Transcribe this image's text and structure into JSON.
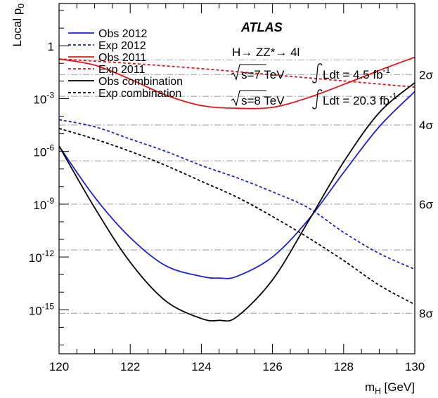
{
  "chart_data": {
    "type": "line",
    "xlabel": "m",
    "xlabel_sub": "H",
    "xlabel_unit": "[GeV]",
    "ylabel": "Local p",
    "ylabel_sub": "0",
    "xlim": [
      120,
      130
    ],
    "ylim_log10": [
      -17.5,
      2.4
    ],
    "y_scale": "log",
    "x_ticks": [
      "120",
      "122",
      "124",
      "126",
      "128",
      "130"
    ],
    "y_ticks": [
      {
        "log10": 0,
        "base": "1",
        "exp": ""
      },
      {
        "log10": -3,
        "base": "10",
        "exp": "-3"
      },
      {
        "log10": -6,
        "base": "10",
        "exp": "-6"
      },
      {
        "log10": -9,
        "base": "10",
        "exp": "-9"
      },
      {
        "log10": -12,
        "base": "10",
        "exp": "-12"
      },
      {
        "log10": -15,
        "base": "10",
        "exp": "-15"
      }
    ],
    "sigma_lines": [
      {
        "label": "2σ",
        "log10": -1.64,
        "labeled": true
      },
      {
        "label": "",
        "log10": -0.8,
        "labeled": false
      },
      {
        "label": "4σ",
        "log10": -4.5,
        "labeled": true
      },
      {
        "label": "",
        "log10": -2.87,
        "labeled": false
      },
      {
        "label": "6σ",
        "log10": -9.0,
        "labeled": true
      },
      {
        "label": "",
        "log10": -6.54,
        "labeled": false
      },
      {
        "label": "8σ",
        "log10": -15.2,
        "labeled": true
      },
      {
        "label": "",
        "log10": -11.6,
        "labeled": false
      },
      {
        "label": "",
        "log10": -18.5,
        "labeled": false
      }
    ],
    "series": [
      {
        "name": "Obs 2012",
        "color": "#1f1fd6",
        "dash": "solid",
        "x": [
          120,
          121,
          122,
          123,
          124,
          124.5,
          125,
          126,
          127,
          128,
          129,
          130
        ],
        "y_log10": [
          -5.7,
          -8.6,
          -10.9,
          -12.5,
          -13.1,
          -13.2,
          -13.1,
          -12.0,
          -9.9,
          -7.2,
          -4.6,
          -2.6
        ]
      },
      {
        "name": "Exp 2012",
        "color": "#1f1fd6",
        "dash": "dashed",
        "x": [
          120,
          121,
          122,
          123,
          124,
          125,
          126,
          127,
          128,
          129,
          130
        ],
        "y_log10": [
          -4.2,
          -4.6,
          -5.3,
          -6.0,
          -6.8,
          -7.5,
          -8.3,
          -9.2,
          -10.6,
          -11.8,
          -12.7
        ]
      },
      {
        "name": "Obs 2011",
        "color": "#e8141c",
        "dash": "solid",
        "x": [
          120,
          121,
          122,
          123,
          124,
          125,
          126,
          127,
          128,
          129,
          130
        ],
        "y_log10": [
          -0.75,
          -1.1,
          -1.9,
          -2.8,
          -3.4,
          -3.55,
          -3.5,
          -2.95,
          -2.2,
          -1.4,
          -0.65
        ]
      },
      {
        "name": "Exp 2011",
        "color": "#e8141c",
        "dash": "dashed",
        "x": [
          120,
          122,
          124,
          126,
          128,
          130
        ],
        "y_log10": [
          -0.75,
          -1.0,
          -1.3,
          -1.65,
          -2.0,
          -2.35
        ]
      },
      {
        "name": "Obs combination",
        "color": "#000000",
        "dash": "solid",
        "x": [
          120,
          121,
          122,
          123,
          124,
          124.5,
          125,
          126,
          127,
          128,
          129,
          130
        ],
        "y_log10": [
          -5.7,
          -9.2,
          -12.3,
          -14.5,
          -15.5,
          -15.6,
          -15.4,
          -13.3,
          -10.0,
          -6.6,
          -3.8,
          -2.1
        ]
      },
      {
        "name": "Exp combination",
        "color": "#000000",
        "dash": "dashed",
        "x": [
          120,
          121,
          122,
          123,
          124,
          125,
          126,
          127,
          128,
          129,
          130
        ],
        "y_log10": [
          -4.7,
          -5.3,
          -6.0,
          -6.8,
          -7.7,
          -8.6,
          -9.7,
          -10.9,
          -12.2,
          -13.6,
          -14.7
        ]
      }
    ],
    "legend_placement": "top-left",
    "annotations": {
      "experiment": "ATLAS",
      "channel": "H→ ZZ*→ 4l",
      "lumi_7": {
        "sqrt_s": "s=7 TeV",
        "ldt": "Ldt = 4.5 fb",
        "exp": "-1"
      },
      "lumi_8": {
        "sqrt_s": "s=8 TeV",
        "ldt": "Ldt = 20.3 fb",
        "exp": "-1"
      }
    },
    "grid": false
  }
}
